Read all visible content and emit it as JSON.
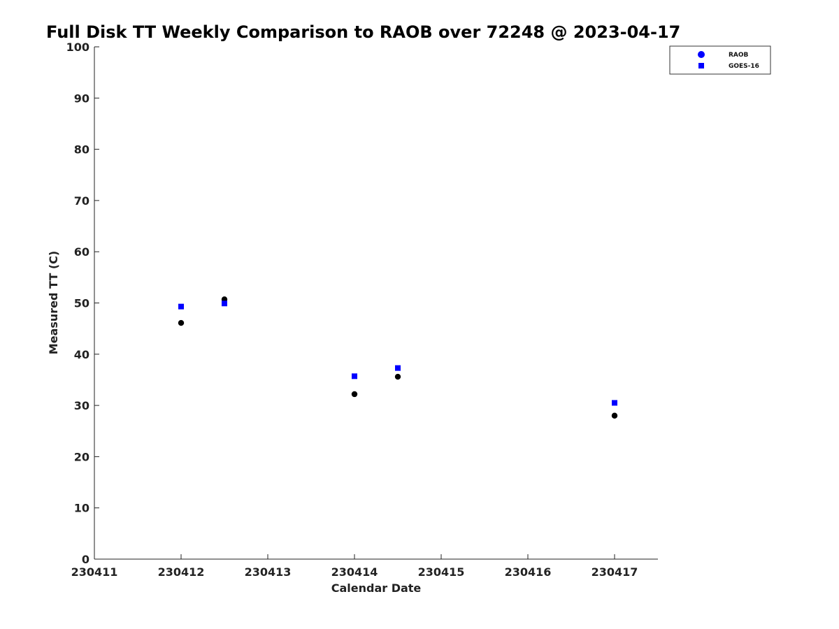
{
  "chart_data": {
    "type": "scatter",
    "title": "Full Disk TT Weekly Comparison to RAOB over 72248 @ 2023-04-17",
    "xlabel": "Calendar Date",
    "ylabel": "Measured TT (C)",
    "xlim": [
      230411,
      230417.5
    ],
    "ylim": [
      0,
      100
    ],
    "xticks": [
      230411,
      230412,
      230413,
      230414,
      230415,
      230416,
      230417
    ],
    "xtick_labels": [
      "230411",
      "230412",
      "230413",
      "230414",
      "230415",
      "230416",
      "230417"
    ],
    "yticks": [
      0,
      10,
      20,
      30,
      40,
      50,
      60,
      70,
      80,
      90,
      100
    ],
    "ytick_labels": [
      "0",
      "10",
      "20",
      "30",
      "40",
      "50",
      "60",
      "70",
      "80",
      "90",
      "100"
    ],
    "legend_position": "top-right",
    "series": [
      {
        "name": "RAOB",
        "marker": "circle",
        "color": "#000000",
        "legend_color": "#0000ff",
        "x": [
          230412,
          230412.5,
          230414,
          230414.5,
          230417
        ],
        "y": [
          46.1,
          50.7,
          32.2,
          35.6,
          28.0
        ]
      },
      {
        "name": "GOES-16",
        "marker": "square",
        "color": "#0000ff",
        "legend_color": "#0000ff",
        "x": [
          230412,
          230412.5,
          230414,
          230414.5,
          230417
        ],
        "y": [
          49.3,
          49.9,
          35.7,
          37.3,
          30.5
        ]
      }
    ]
  }
}
